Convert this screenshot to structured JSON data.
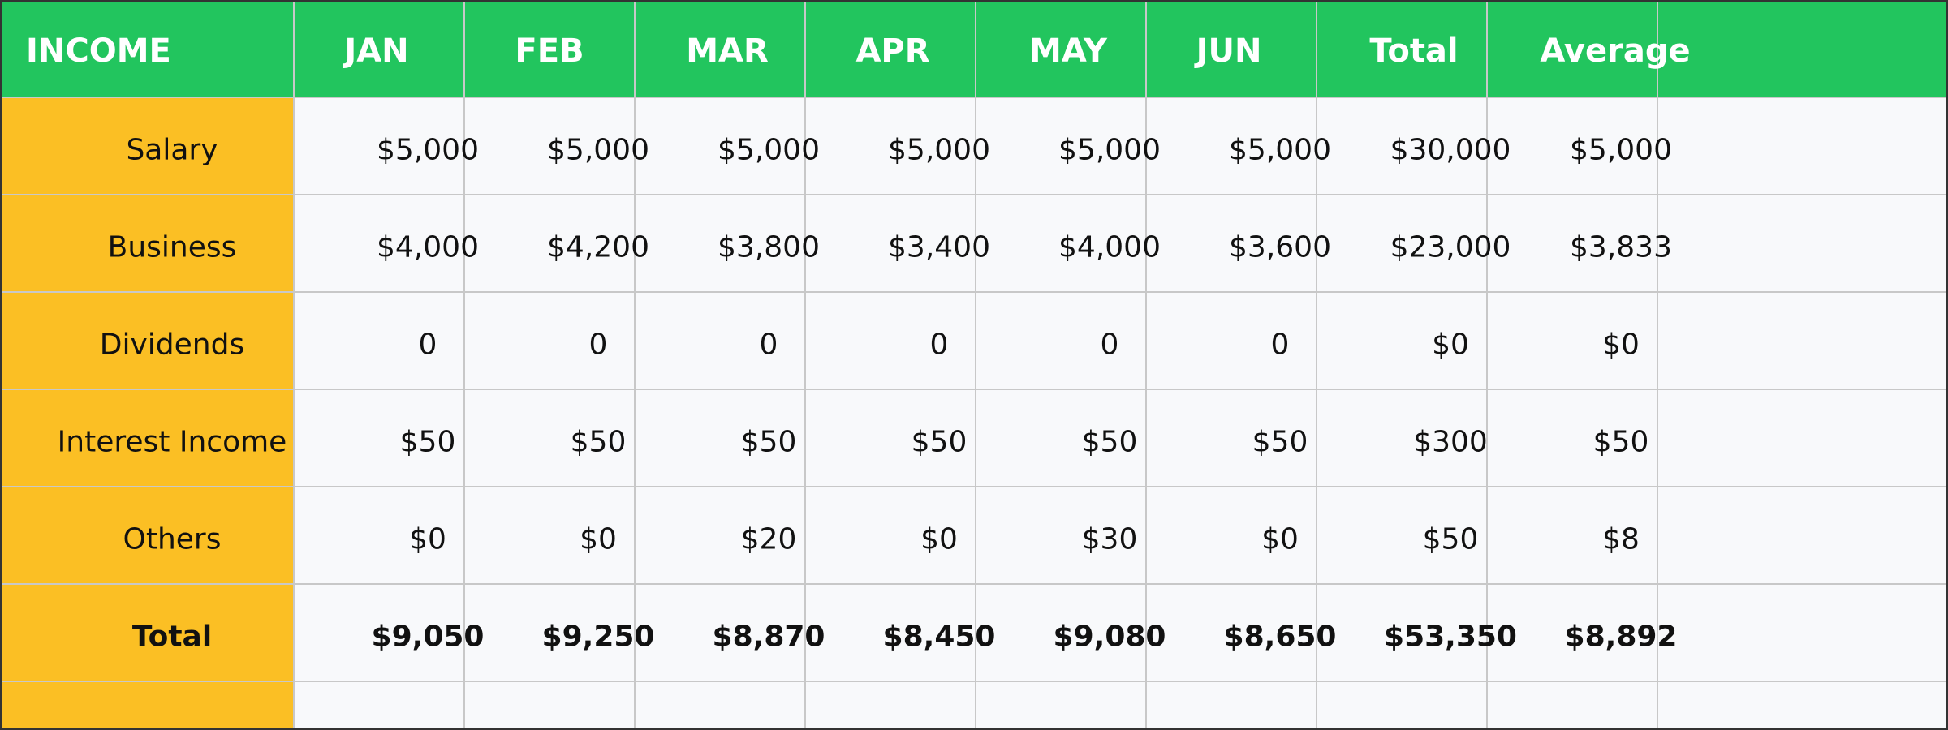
{
  "table": {
    "headers": [
      "INCOME",
      "JAN",
      "FEB",
      "MAR",
      "APR",
      "MAY",
      "JUN",
      "Total",
      "Average"
    ],
    "rows": [
      {
        "label": "Salary",
        "cells": [
          "$5,000",
          "$5,000",
          "$5,000",
          "$5,000",
          "$5,000",
          "$5,000",
          "$30,000",
          "$5,000"
        ]
      },
      {
        "label": "Business",
        "cells": [
          "$4,000",
          "$4,200",
          "$3,800",
          "$3,400",
          "$4,000",
          "$3,600",
          "$23,000",
          "$3,833"
        ]
      },
      {
        "label": "Dividends",
        "cells": [
          "0",
          "0",
          "0",
          "0",
          "0",
          "0",
          "$0",
          "$0"
        ]
      },
      {
        "label": "Interest Income",
        "cells": [
          "$50",
          "$50",
          "$50",
          "$50",
          "$50",
          "$50",
          "$300",
          "$50"
        ]
      },
      {
        "label": "Others",
        "cells": [
          "$0",
          "$0",
          "$20",
          "$0",
          "$30",
          "$0",
          "$50",
          "$8"
        ]
      },
      {
        "label": "Total",
        "cells": [
          "$9,050",
          "$9,250",
          "$8,870",
          "$8,450",
          "$9,080",
          "$8,650",
          "$53,350",
          "$8,892"
        ]
      }
    ]
  },
  "colors": {
    "header_bg": "#22c55e",
    "label_column_bg": "#fbbf24",
    "cell_bg": "#f8f9fb",
    "grid": "#c8c8c8"
  }
}
